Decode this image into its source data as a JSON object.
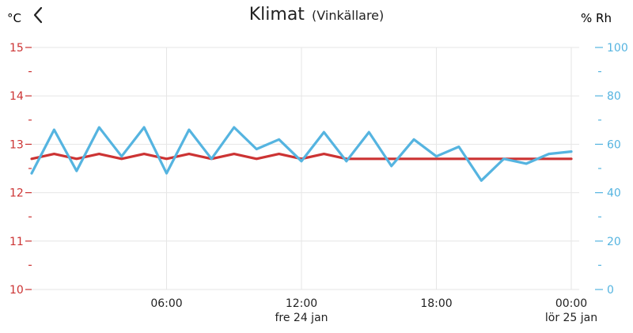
{
  "header": {
    "title": "Klimat",
    "subtitle": "(Vinkällare)",
    "back_icon": "chevron-left-icon"
  },
  "colors": {
    "temperature": "#cc3333",
    "humidity": "#55b4e0",
    "grid": "#e6e6e6",
    "text": "#222222"
  },
  "chart_data": {
    "type": "line",
    "title": "Klimat (Vinkällare)",
    "x_ticks": [
      {
        "x": 6,
        "label": "06:00",
        "sub": ""
      },
      {
        "x": 12,
        "label": "12:00",
        "sub": "fre 24 jan"
      },
      {
        "x": 18,
        "label": "18:00",
        "sub": ""
      },
      {
        "x": 24,
        "label": "00:00",
        "sub": "lör 25 jan"
      }
    ],
    "xlim": [
      0,
      24
    ],
    "y_left": {
      "label": "°C",
      "lim": [
        10,
        15
      ],
      "ticks": [
        10,
        11,
        12,
        13,
        14,
        15
      ],
      "minor_ticks": [
        10.5,
        11.5,
        12.5,
        13.5,
        14.5
      ]
    },
    "y_right": {
      "label": "% Rh",
      "lim": [
        0,
        100
      ],
      "ticks": [
        0,
        20,
        40,
        60,
        80,
        100
      ],
      "minor_ticks": [
        10,
        30,
        50,
        70,
        90
      ]
    },
    "grid": true,
    "series": [
      {
        "axis": "left",
        "x": [
          0,
          1,
          2,
          3,
          4,
          5,
          6,
          7,
          8,
          9,
          10,
          11,
          12,
          13,
          14,
          15,
          16,
          17,
          18,
          19,
          20,
          21,
          22,
          23,
          24
        ],
        "values": [
          12.7,
          12.8,
          12.7,
          12.8,
          12.7,
          12.8,
          12.7,
          12.8,
          12.7,
          12.8,
          12.7,
          12.8,
          12.7,
          12.8,
          12.7,
          12.7,
          12.7,
          12.7,
          12.7,
          12.7,
          12.7,
          12.7,
          12.7,
          12.7,
          12.7
        ]
      },
      {
        "axis": "right",
        "x": [
          0,
          1,
          2,
          3,
          4,
          5,
          6,
          7,
          8,
          9,
          10,
          11,
          12,
          13,
          14,
          15,
          16,
          17,
          18,
          19,
          20,
          21,
          22,
          23,
          24
        ],
        "values": [
          48,
          66,
          49,
          67,
          55,
          67,
          48,
          66,
          54,
          67,
          58,
          62,
          53,
          65,
          53,
          65,
          51,
          62,
          55,
          59,
          45,
          54,
          52,
          56,
          57
        ]
      }
    ]
  }
}
